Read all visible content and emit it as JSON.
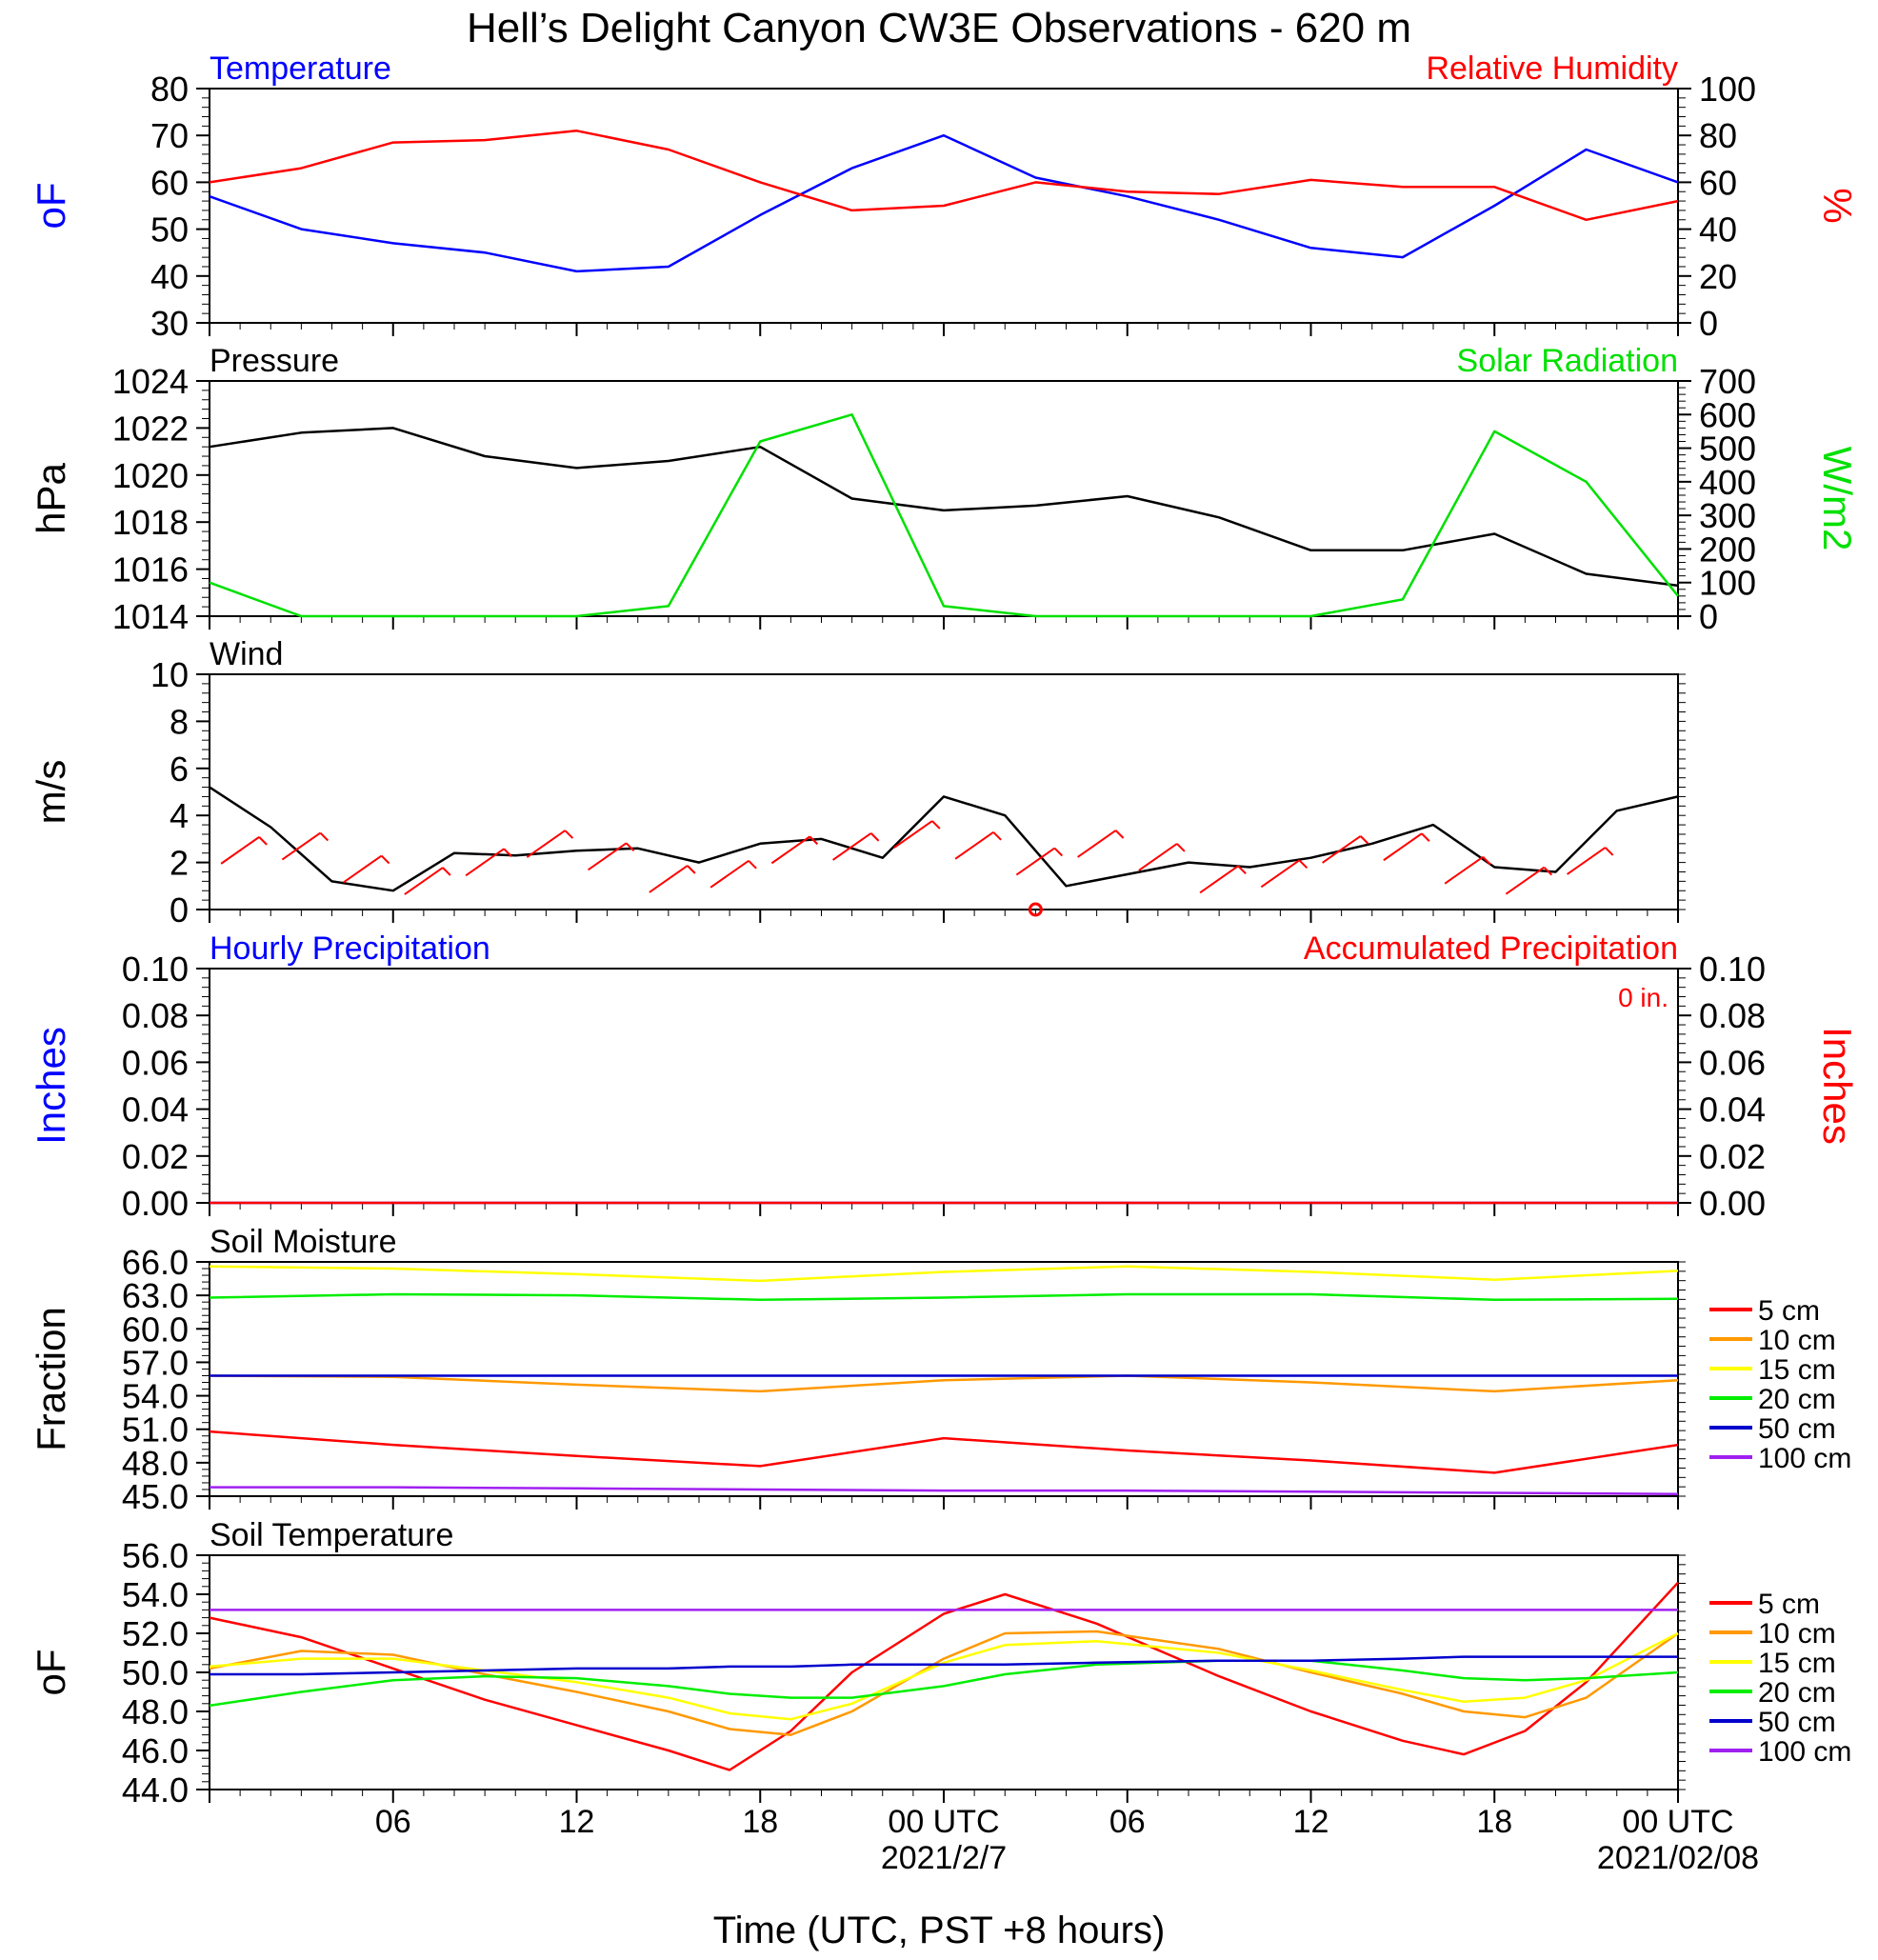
{
  "page": {
    "title": "Hell’s Delight Canyon CW3E Observations - 620 m",
    "xlabel": "Time (UTC, PST +8 hours)",
    "x_ticks": [
      "06",
      "12",
      "18",
      "00 UTC",
      "06",
      "12",
      "18",
      "00 UTC"
    ],
    "x_dates": [
      "2021/2/7",
      "2021/02/08"
    ]
  },
  "colors": {
    "temperature": "#0000ff",
    "humidity": "#ff0000",
    "pressure": "#000000",
    "solar": "#00e000",
    "wind": "#000000",
    "barbs": "#ff0000",
    "soil_5": "#ff0000",
    "soil_10": "#ff9900",
    "soil_15": "#ffff00",
    "soil_20": "#00ee00",
    "soil_50": "#0000cc",
    "soil_100": "#a020f0"
  },
  "chart_data": [
    {
      "type": "line",
      "title_left": "Temperature",
      "title_right": "Relative Humidity",
      "ylabel_left": "oF",
      "ylabel_right": "%",
      "ylim_left": [
        30,
        80
      ],
      "ylim_right": [
        0,
        100
      ],
      "yticks_left": [
        "30",
        "40",
        "50",
        "60",
        "70",
        "80"
      ],
      "yticks_right": [
        "0",
        "20",
        "40",
        "60",
        "80",
        "100"
      ],
      "x_hours": [
        0,
        3,
        6,
        9,
        12,
        15,
        18,
        21,
        24,
        27,
        30,
        33,
        36,
        39,
        42,
        45,
        48
      ],
      "series": [
        {
          "name": "Temperature",
          "axis": "left",
          "values": [
            57,
            50,
            47,
            45,
            41,
            42,
            53,
            63,
            70,
            61,
            57,
            52,
            46,
            44,
            55,
            67,
            60
          ]
        },
        {
          "name": "Relative Humidity",
          "axis": "right",
          "values": [
            60,
            66,
            77,
            78,
            82,
            74,
            60,
            48,
            50,
            60,
            56,
            55,
            61,
            58,
            58,
            44,
            52
          ]
        }
      ]
    },
    {
      "type": "line",
      "title_left": "Pressure",
      "title_right": "Solar Radiation",
      "ylabel_left": "hPa",
      "ylabel_right": "W/m2",
      "ylim_left": [
        1014,
        1024
      ],
      "ylim_right": [
        0,
        700
      ],
      "yticks_left": [
        "1014",
        "1016",
        "1018",
        "1020",
        "1022",
        "1024"
      ],
      "yticks_right": [
        "0",
        "100",
        "200",
        "300",
        "400",
        "500",
        "600",
        "700"
      ],
      "x_hours": [
        0,
        3,
        6,
        9,
        12,
        15,
        18,
        21,
        24,
        27,
        30,
        33,
        36,
        39,
        42,
        45,
        48
      ],
      "series": [
        {
          "name": "Pressure",
          "axis": "left",
          "values": [
            1021.2,
            1021.8,
            1022.0,
            1020.8,
            1020.3,
            1020.6,
            1021.2,
            1019.0,
            1018.5,
            1018.7,
            1019.1,
            1018.2,
            1016.8,
            1016.8,
            1017.5,
            1015.8,
            1015.3
          ]
        },
        {
          "name": "Solar Radiation",
          "axis": "right",
          "values": [
            100,
            0,
            0,
            0,
            0,
            30,
            520,
            600,
            30,
            0,
            0,
            0,
            0,
            50,
            550,
            400,
            60
          ]
        }
      ]
    },
    {
      "type": "line",
      "title_left": "Wind",
      "ylabel_left": "m/s",
      "ylim_left": [
        0,
        10
      ],
      "yticks_left": [
        "0",
        "2",
        "4",
        "6",
        "8",
        "10"
      ],
      "x_hours": [
        0,
        2,
        4,
        6,
        8,
        10,
        12,
        14,
        16,
        18,
        20,
        22,
        24,
        26,
        28,
        30,
        32,
        34,
        36,
        38,
        40,
        42,
        44,
        46,
        48
      ],
      "series": [
        {
          "name": "Wind speed",
          "axis": "left",
          "values": [
            5.2,
            3.5,
            1.2,
            0.8,
            2.4,
            2.3,
            2.5,
            2.6,
            2.0,
            2.8,
            3.0,
            2.2,
            4.8,
            4.0,
            1.0,
            1.5,
            2.0,
            1.8,
            2.2,
            2.8,
            3.6,
            1.8,
            1.6,
            4.2,
            4.8
          ]
        }
      ]
    },
    {
      "type": "line",
      "title_left": "Hourly Precipitation",
      "title_right": "Accumulated Precipitation",
      "annotation": "0 in.",
      "ylabel_left": "Inches",
      "ylabel_right": "Inches",
      "ylim_left": [
        0,
        0.1
      ],
      "ylim_right": [
        0,
        0.1
      ],
      "yticks_left": [
        "0.00",
        "0.02",
        "0.04",
        "0.06",
        "0.08",
        "0.10"
      ],
      "yticks_right": [
        "0.00",
        "0.02",
        "0.04",
        "0.06",
        "0.08",
        "0.10"
      ],
      "x_hours": [
        0,
        48
      ],
      "series": [
        {
          "name": "Hourly Precipitation",
          "axis": "left",
          "values": [
            0,
            0
          ]
        },
        {
          "name": "Accumulated Precipitation",
          "axis": "right",
          "values": [
            0,
            0
          ]
        }
      ]
    },
    {
      "type": "line",
      "title_left": "Soil Moisture",
      "ylabel_left": "Fraction",
      "ylim_left": [
        45,
        66
      ],
      "yticks_left": [
        "45.0",
        "48.0",
        "51.0",
        "54.0",
        "57.0",
        "60.0",
        "63.0",
        "66.0"
      ],
      "x_hours": [
        0,
        6,
        12,
        18,
        24,
        30,
        36,
        42,
        48
      ],
      "legend": [
        "5 cm",
        "10 cm",
        "15 cm",
        "20 cm",
        "50 cm",
        "100 cm"
      ],
      "series": [
        {
          "name": "5 cm",
          "values": [
            50.8,
            49.6,
            48.6,
            47.7,
            50.2,
            49.1,
            48.2,
            47.1,
            49.6
          ]
        },
        {
          "name": "10 cm",
          "values": [
            55.8,
            55.7,
            55.0,
            54.4,
            55.4,
            55.8,
            55.2,
            54.4,
            55.4
          ]
        },
        {
          "name": "15 cm",
          "values": [
            65.6,
            65.4,
            64.9,
            64.3,
            65.1,
            65.6,
            65.1,
            64.4,
            65.2
          ]
        },
        {
          "name": "20 cm",
          "values": [
            62.8,
            63.1,
            63.0,
            62.6,
            62.8,
            63.1,
            63.1,
            62.6,
            62.7
          ]
        },
        {
          "name": "50 cm",
          "values": [
            55.8,
            55.8,
            55.8,
            55.8,
            55.8,
            55.8,
            55.8,
            55.8,
            55.8
          ]
        },
        {
          "name": "100 cm",
          "values": [
            45.8,
            45.8,
            45.7,
            45.6,
            45.5,
            45.5,
            45.4,
            45.3,
            45.2
          ]
        }
      ]
    },
    {
      "type": "line",
      "title_left": "Soil Temperature",
      "ylabel_left": "oF",
      "ylim_left": [
        44,
        56
      ],
      "yticks_left": [
        "44.0",
        "46.0",
        "48.0",
        "50.0",
        "52.0",
        "54.0",
        "56.0"
      ],
      "x_hours": [
        0,
        3,
        6,
        9,
        12,
        15,
        17,
        19,
        21,
        24,
        26,
        29,
        33,
        36,
        39,
        41,
        43,
        45,
        48
      ],
      "legend": [
        "5 cm",
        "10 cm",
        "15 cm",
        "20 cm",
        "50 cm",
        "100 cm"
      ],
      "series": [
        {
          "name": "5 cm",
          "values": [
            52.8,
            51.8,
            50.2,
            48.6,
            47.3,
            46.0,
            45.0,
            47.0,
            50.0,
            53.0,
            54.0,
            52.5,
            49.8,
            48.0,
            46.5,
            45.8,
            47.0,
            49.5,
            54.6
          ]
        },
        {
          "name": "10 cm",
          "values": [
            50.2,
            51.1,
            50.9,
            49.9,
            49.0,
            48.0,
            47.1,
            46.8,
            48.0,
            50.7,
            52.0,
            52.1,
            51.2,
            50.0,
            48.9,
            48.0,
            47.7,
            48.7,
            52.0
          ]
        },
        {
          "name": "15 cm",
          "values": [
            50.3,
            50.7,
            50.7,
            50.1,
            49.5,
            48.7,
            47.9,
            47.6,
            48.4,
            50.5,
            51.4,
            51.6,
            51.0,
            50.1,
            49.1,
            48.5,
            48.7,
            49.6,
            52.0
          ]
        },
        {
          "name": "20 cm",
          "values": [
            48.3,
            49.0,
            49.6,
            49.8,
            49.7,
            49.3,
            48.9,
            48.7,
            48.7,
            49.3,
            49.9,
            50.4,
            50.6,
            50.6,
            50.1,
            49.7,
            49.6,
            49.7,
            50.0
          ]
        },
        {
          "name": "50 cm",
          "values": [
            49.9,
            49.9,
            50.0,
            50.1,
            50.2,
            50.2,
            50.3,
            50.3,
            50.4,
            50.4,
            50.4,
            50.5,
            50.6,
            50.6,
            50.7,
            50.8,
            50.8,
            50.8,
            50.8
          ]
        },
        {
          "name": "100 cm",
          "values": [
            53.2,
            53.2,
            53.2,
            53.2,
            53.2,
            53.2,
            53.2,
            53.2,
            53.2,
            53.2,
            53.2,
            53.2,
            53.2,
            53.2,
            53.2,
            53.2,
            53.2,
            53.2,
            53.2
          ]
        }
      ]
    }
  ]
}
